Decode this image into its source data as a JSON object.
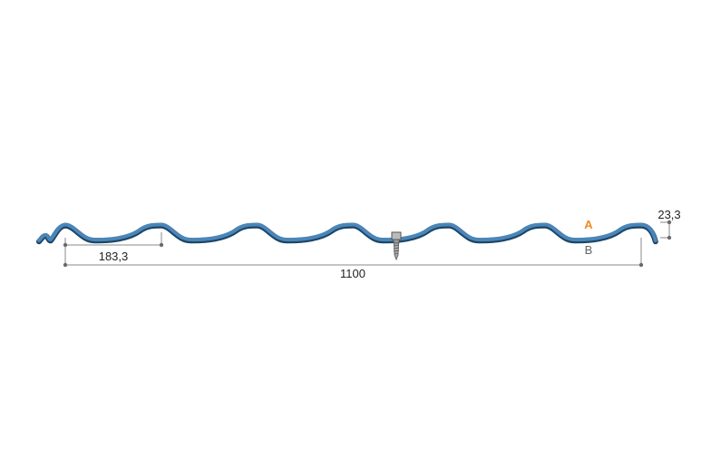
{
  "dimensions": {
    "pitch": "183,3",
    "width": "1100",
    "height": "23,3"
  },
  "sides": {
    "a": "A",
    "b": "B"
  },
  "colors": {
    "profile": "#4a86b8",
    "profile_edge": "#1d4466",
    "dimension_line": "#8a8a8a",
    "label_a": "#f08a24",
    "label_b": "#666666",
    "text": "#222222"
  },
  "icons": {
    "fastener": "screw-icon"
  }
}
